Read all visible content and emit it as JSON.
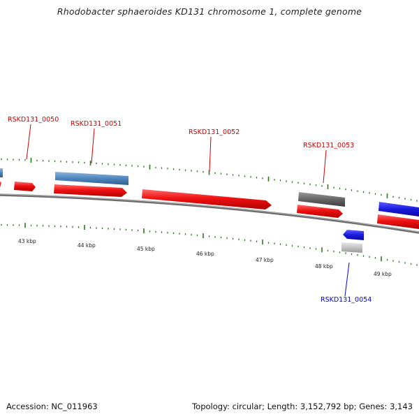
{
  "title": "Rhodobacter sphaeroides KD131 chromosome 1, complete genome",
  "footer": {
    "accession": "Accession: NC_011963",
    "summary": "Topology: circular; Length: 3,152,792 bp; Genes: 3,143"
  },
  "colors": {
    "backbone": "#8a8a8a",
    "tick": "#2a7a1a",
    "gene_red": "#ee1111",
    "gene_steelblue": "#4d86bf",
    "gene_blue": "#1a1ae0",
    "gene_darkgray": "#666666",
    "gene_lightgray": "#bdbdbd",
    "label_red": "#cc0000",
    "label_blue": "#0000cc"
  },
  "scale_labels": [
    "43 kbp",
    "44 kbp",
    "45 kbp",
    "46 kbp",
    "47 kbp",
    "48 kbp",
    "49 kbp"
  ],
  "gene_labels": [
    {
      "text": "RSKD131_0050",
      "color": "label_red"
    },
    {
      "text": "RSKD131_0051",
      "color": "label_red"
    },
    {
      "text": "RSKD131_0052",
      "color": "label_red"
    },
    {
      "text": "RSKD131_0053",
      "color": "label_red"
    },
    {
      "text": "RSKD131_0054",
      "color": "label_blue"
    }
  ]
}
